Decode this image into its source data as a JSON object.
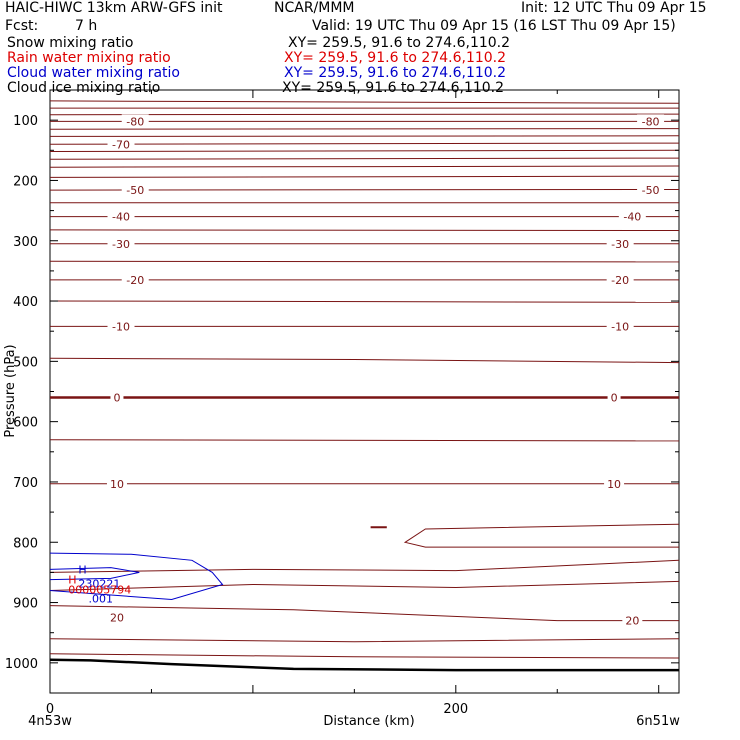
{
  "header": {
    "model": "HAIC-HIWC 13km ARW-GFS init",
    "org": "NCAR/MMM",
    "init": "Init: 12 UTC Thu 09 Apr 15",
    "fcst_label": "Fcst:",
    "fcst_value": "7 h",
    "valid": "Valid: 19 UTC Thu 09 Apr 15 (16 LST Thu 09 Apr 15)"
  },
  "fields": [
    {
      "name": "Snow mixing ratio",
      "xy": "XY= 259.5, 91.6 to 274.6,110.2",
      "color": "#000000"
    },
    {
      "name": "Rain water mixing ratio",
      "xy": "XY= 259.5, 91.6 to 274.6,110.2",
      "color": "#dd0000"
    },
    {
      "name": "Cloud water mixing ratio",
      "xy": "XY= 259.5, 91.6 to 274.6,110.2",
      "color": "#0000cc"
    },
    {
      "name": "Cloud ice mixing ratio",
      "xy": "XY= 259.5, 91.6 to 274.6,110.2",
      "color": "#000000"
    }
  ],
  "colors": {
    "temperature": "#7a1414",
    "cloud_water": "#0000cc",
    "rain_water": "#dd0000",
    "terrain": "#000000"
  },
  "chart_data": {
    "type": "line",
    "xlabel": "Distance (km)",
    "ylabel": "Pressure (hPa)",
    "xlim": [
      0,
      310
    ],
    "ylim": [
      1050,
      50
    ],
    "x_ticks": [
      0,
      200
    ],
    "y_ticks": [
      100,
      200,
      300,
      400,
      500,
      600,
      700,
      800,
      900,
      1000
    ],
    "x_endpoints": {
      "left": "4n53w",
      "right": "6n51w"
    },
    "temperature_contour_labels": [
      {
        "text": "-80",
        "x": 42,
        "p": 102
      },
      {
        "text": "-80",
        "x": 296,
        "p": 102
      },
      {
        "text": "-70",
        "x": 35,
        "p": 140
      },
      {
        "text": "-50",
        "x": 42,
        "p": 216
      },
      {
        "text": "-50",
        "x": 296,
        "p": 216
      },
      {
        "text": "-40",
        "x": 35,
        "p": 260
      },
      {
        "text": "-40",
        "x": 287,
        "p": 260
      },
      {
        "text": "-30",
        "x": 35,
        "p": 305
      },
      {
        "text": "-30",
        "x": 281,
        "p": 305
      },
      {
        "text": "-20",
        "x": 42,
        "p": 365
      },
      {
        "text": "-20",
        "x": 281,
        "p": 365
      },
      {
        "text": "-10",
        "x": 35,
        "p": 442
      },
      {
        "text": "-10",
        "x": 281,
        "p": 442
      },
      {
        "text": "0",
        "x": 33,
        "p": 560
      },
      {
        "text": "0",
        "x": 278,
        "p": 560
      },
      {
        "text": "10",
        "x": 33,
        "p": 703
      },
      {
        "text": "10",
        "x": 278,
        "p": 703
      },
      {
        "text": "20",
        "x": 33,
        "p": 925
      },
      {
        "text": "20",
        "x": 287,
        "p": 930
      }
    ],
    "temperature_isotherms": [
      {
        "x": [
          0,
          310
        ],
        "p": [
          68,
          72
        ]
      },
      {
        "x": [
          0,
          310
        ],
        "p": [
          80,
          80
        ]
      },
      {
        "x": [
          0,
          310
        ],
        "p": [
          91,
          90
        ]
      },
      {
        "x": [
          0,
          310
        ],
        "p": [
          102,
          102
        ]
      },
      {
        "x": [
          0,
          310
        ],
        "p": [
          115,
          114
        ]
      },
      {
        "x": [
          0,
          310
        ],
        "p": [
          127,
          126
        ]
      },
      {
        "x": [
          0,
          310
        ],
        "p": [
          140,
          138
        ]
      },
      {
        "x": [
          0,
          310
        ],
        "p": [
          152,
          150
        ]
      },
      {
        "x": [
          0,
          310
        ],
        "p": [
          165,
          163
        ]
      },
      {
        "x": [
          0,
          310
        ],
        "p": [
          178,
          176
        ]
      },
      {
        "x": [
          0,
          310
        ],
        "p": [
          195,
          193
        ]
      },
      {
        "x": [
          0,
          310
        ],
        "p": [
          216,
          215
        ]
      },
      {
        "x": [
          0,
          310
        ],
        "p": [
          237,
          237
        ]
      },
      {
        "x": [
          0,
          310
        ],
        "p": [
          260,
          260
        ]
      },
      {
        "x": [
          0,
          310
        ],
        "p": [
          282,
          283
        ]
      },
      {
        "x": [
          0,
          310
        ],
        "p": [
          305,
          305
        ]
      },
      {
        "x": [
          0,
          310
        ],
        "p": [
          334,
          335
        ]
      },
      {
        "x": [
          0,
          310
        ],
        "p": [
          365,
          365
        ]
      },
      {
        "x": [
          0,
          310
        ],
        "p": [
          400,
          402
        ]
      },
      {
        "x": [
          0,
          310
        ],
        "p": [
          442,
          442
        ]
      },
      {
        "x": [
          0,
          150,
          310
        ],
        "p": [
          495,
          497,
          502
        ]
      },
      {
        "x": [
          0,
          310
        ],
        "p": [
          560,
          560
        ]
      },
      {
        "x": [
          0,
          310
        ],
        "p": [
          630,
          632
        ]
      },
      {
        "x": [
          0,
          310
        ],
        "p": [
          703,
          703
        ]
      },
      {
        "x": [
          0,
          100,
          200,
          310
        ],
        "p": [
          850,
          845,
          847,
          830
        ]
      },
      {
        "x": [
          0,
          100,
          200,
          310
        ],
        "p": [
          880,
          870,
          875,
          865
        ]
      },
      {
        "x": [
          0,
          120,
          250,
          310
        ],
        "p": [
          905,
          912,
          930,
          930
        ]
      },
      {
        "x": [
          0,
          150,
          310
        ],
        "p": [
          960,
          965,
          960
        ]
      },
      {
        "x": [
          0,
          150,
          310
        ],
        "p": [
          985,
          990,
          992
        ]
      }
    ],
    "closed_contour": {
      "x": [
        310,
        185,
        175,
        185,
        310
      ],
      "p": [
        770,
        778,
        800,
        808,
        808
      ]
    },
    "small_segment": {
      "x": [
        158,
        166
      ],
      "p": [
        775,
        775
      ]
    },
    "cloud_water_contours": [
      {
        "x": [
          0,
          40,
          70,
          80,
          85,
          60,
          0
        ],
        "p": [
          818,
          820,
          830,
          850,
          870,
          895,
          880
        ]
      },
      {
        "x": [
          0,
          30,
          44,
          30,
          0
        ],
        "p": [
          845,
          842,
          850,
          860,
          862
        ]
      }
    ],
    "cloud_water_labels": [
      {
        "text": "H",
        "x": 14,
        "p": 845
      },
      {
        "text": "230221",
        "x": 14,
        "p": 868
      },
      {
        "text": ".001",
        "x": 19,
        "p": 893
      }
    ],
    "rain_water_labels": [
      {
        "text": "H",
        "x": 9,
        "p": 862
      },
      {
        "text": "000005794",
        "x": 9,
        "p": 878
      }
    ],
    "terrain": {
      "x": [
        0,
        20,
        60,
        120,
        200,
        310
      ],
      "p": [
        995,
        996,
        1002,
        1010,
        1012,
        1012
      ]
    }
  }
}
